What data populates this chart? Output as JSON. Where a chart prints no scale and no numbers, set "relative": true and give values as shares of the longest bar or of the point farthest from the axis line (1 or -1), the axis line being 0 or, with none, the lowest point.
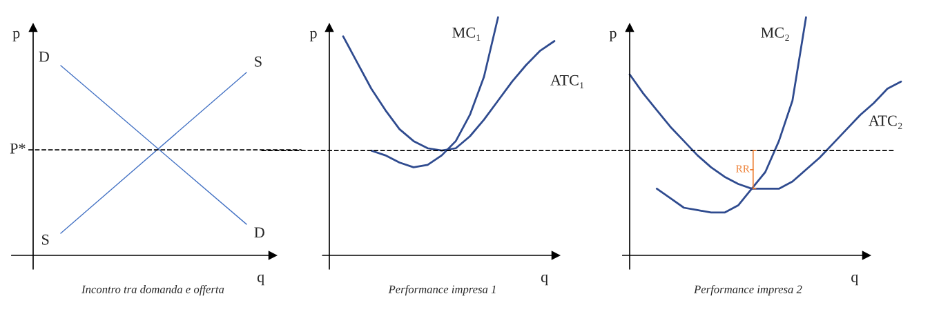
{
  "chart_data": [
    {
      "type": "line",
      "title": "Incontro tra domanda e offerta",
      "xlabel": "q",
      "ylabel": "p",
      "relative": true,
      "categories": [
        null,
        null
      ],
      "series": [
        {
          "name": "D",
          "color": "#4472c4",
          "values": [
            1.0,
            0.164
          ]
        },
        {
          "name": "S",
          "color": "#4472c4",
          "values": [
            0.116,
            0.964
          ]
        }
      ],
      "ref_lines": [
        {
          "axis": "y",
          "value": 0.556,
          "label": "P*",
          "color": "#000000",
          "line_style": "dashed"
        }
      ]
    },
    {
      "type": "line",
      "title": "Performance impresa 1",
      "xlabel": "q",
      "ylabel": "p",
      "relative": true,
      "categories": [
        null,
        null,
        null,
        null,
        null,
        null,
        null,
        null,
        null,
        null,
        null,
        null,
        null,
        null,
        null,
        null
      ],
      "series": [
        {
          "name": "MC₁",
          "color": "#2f4b8f",
          "values": [
            null,
            null,
            0.44,
            0.42,
            0.39,
            0.37,
            0.38,
            0.42,
            0.48,
            0.59,
            0.75,
            1.0,
            null,
            null,
            null,
            null
          ]
        },
        {
          "name": "ATC₁",
          "color": "#2f4b8f",
          "values": [
            0.92,
            0.81,
            0.7,
            0.61,
            0.53,
            0.48,
            0.45,
            0.44,
            0.45,
            0.5,
            0.57,
            0.65,
            0.73,
            0.8,
            0.86,
            0.9
          ]
        }
      ],
      "ref_lines": [
        {
          "axis": "y",
          "value": 0.44,
          "color": "#000000",
          "line_style": "dashed"
        }
      ]
    },
    {
      "type": "line",
      "title": "Performance impresa 2",
      "xlabel": "q",
      "ylabel": "p",
      "relative": true,
      "categories": [
        null,
        null,
        null,
        null,
        null,
        null,
        null,
        null,
        null,
        null,
        null,
        null,
        null,
        null,
        null,
        null,
        null,
        null,
        null,
        null,
        null
      ],
      "series": [
        {
          "name": "MC₂",
          "color": "#2f4b8f",
          "values": [
            null,
            null,
            0.28,
            0.24,
            0.2,
            0.19,
            0.18,
            0.18,
            0.21,
            0.28,
            0.35,
            0.48,
            0.65,
            1.0,
            null,
            null,
            null,
            null,
            null,
            null,
            null
          ]
        },
        {
          "name": "ATC₂",
          "color": "#2f4b8f",
          "values": [
            0.76,
            0.68,
            0.61,
            0.54,
            0.48,
            0.42,
            0.37,
            0.33,
            0.3,
            0.28,
            0.28,
            0.28,
            0.31,
            0.36,
            0.41,
            0.47,
            0.53,
            0.59,
            0.64,
            0.7,
            0.73
          ]
        }
      ],
      "ref_lines": [
        {
          "axis": "y",
          "value": 0.44,
          "color": "#000000",
          "line_style": "dashed"
        }
      ],
      "annotations": [
        "RR"
      ]
    }
  ]
}
